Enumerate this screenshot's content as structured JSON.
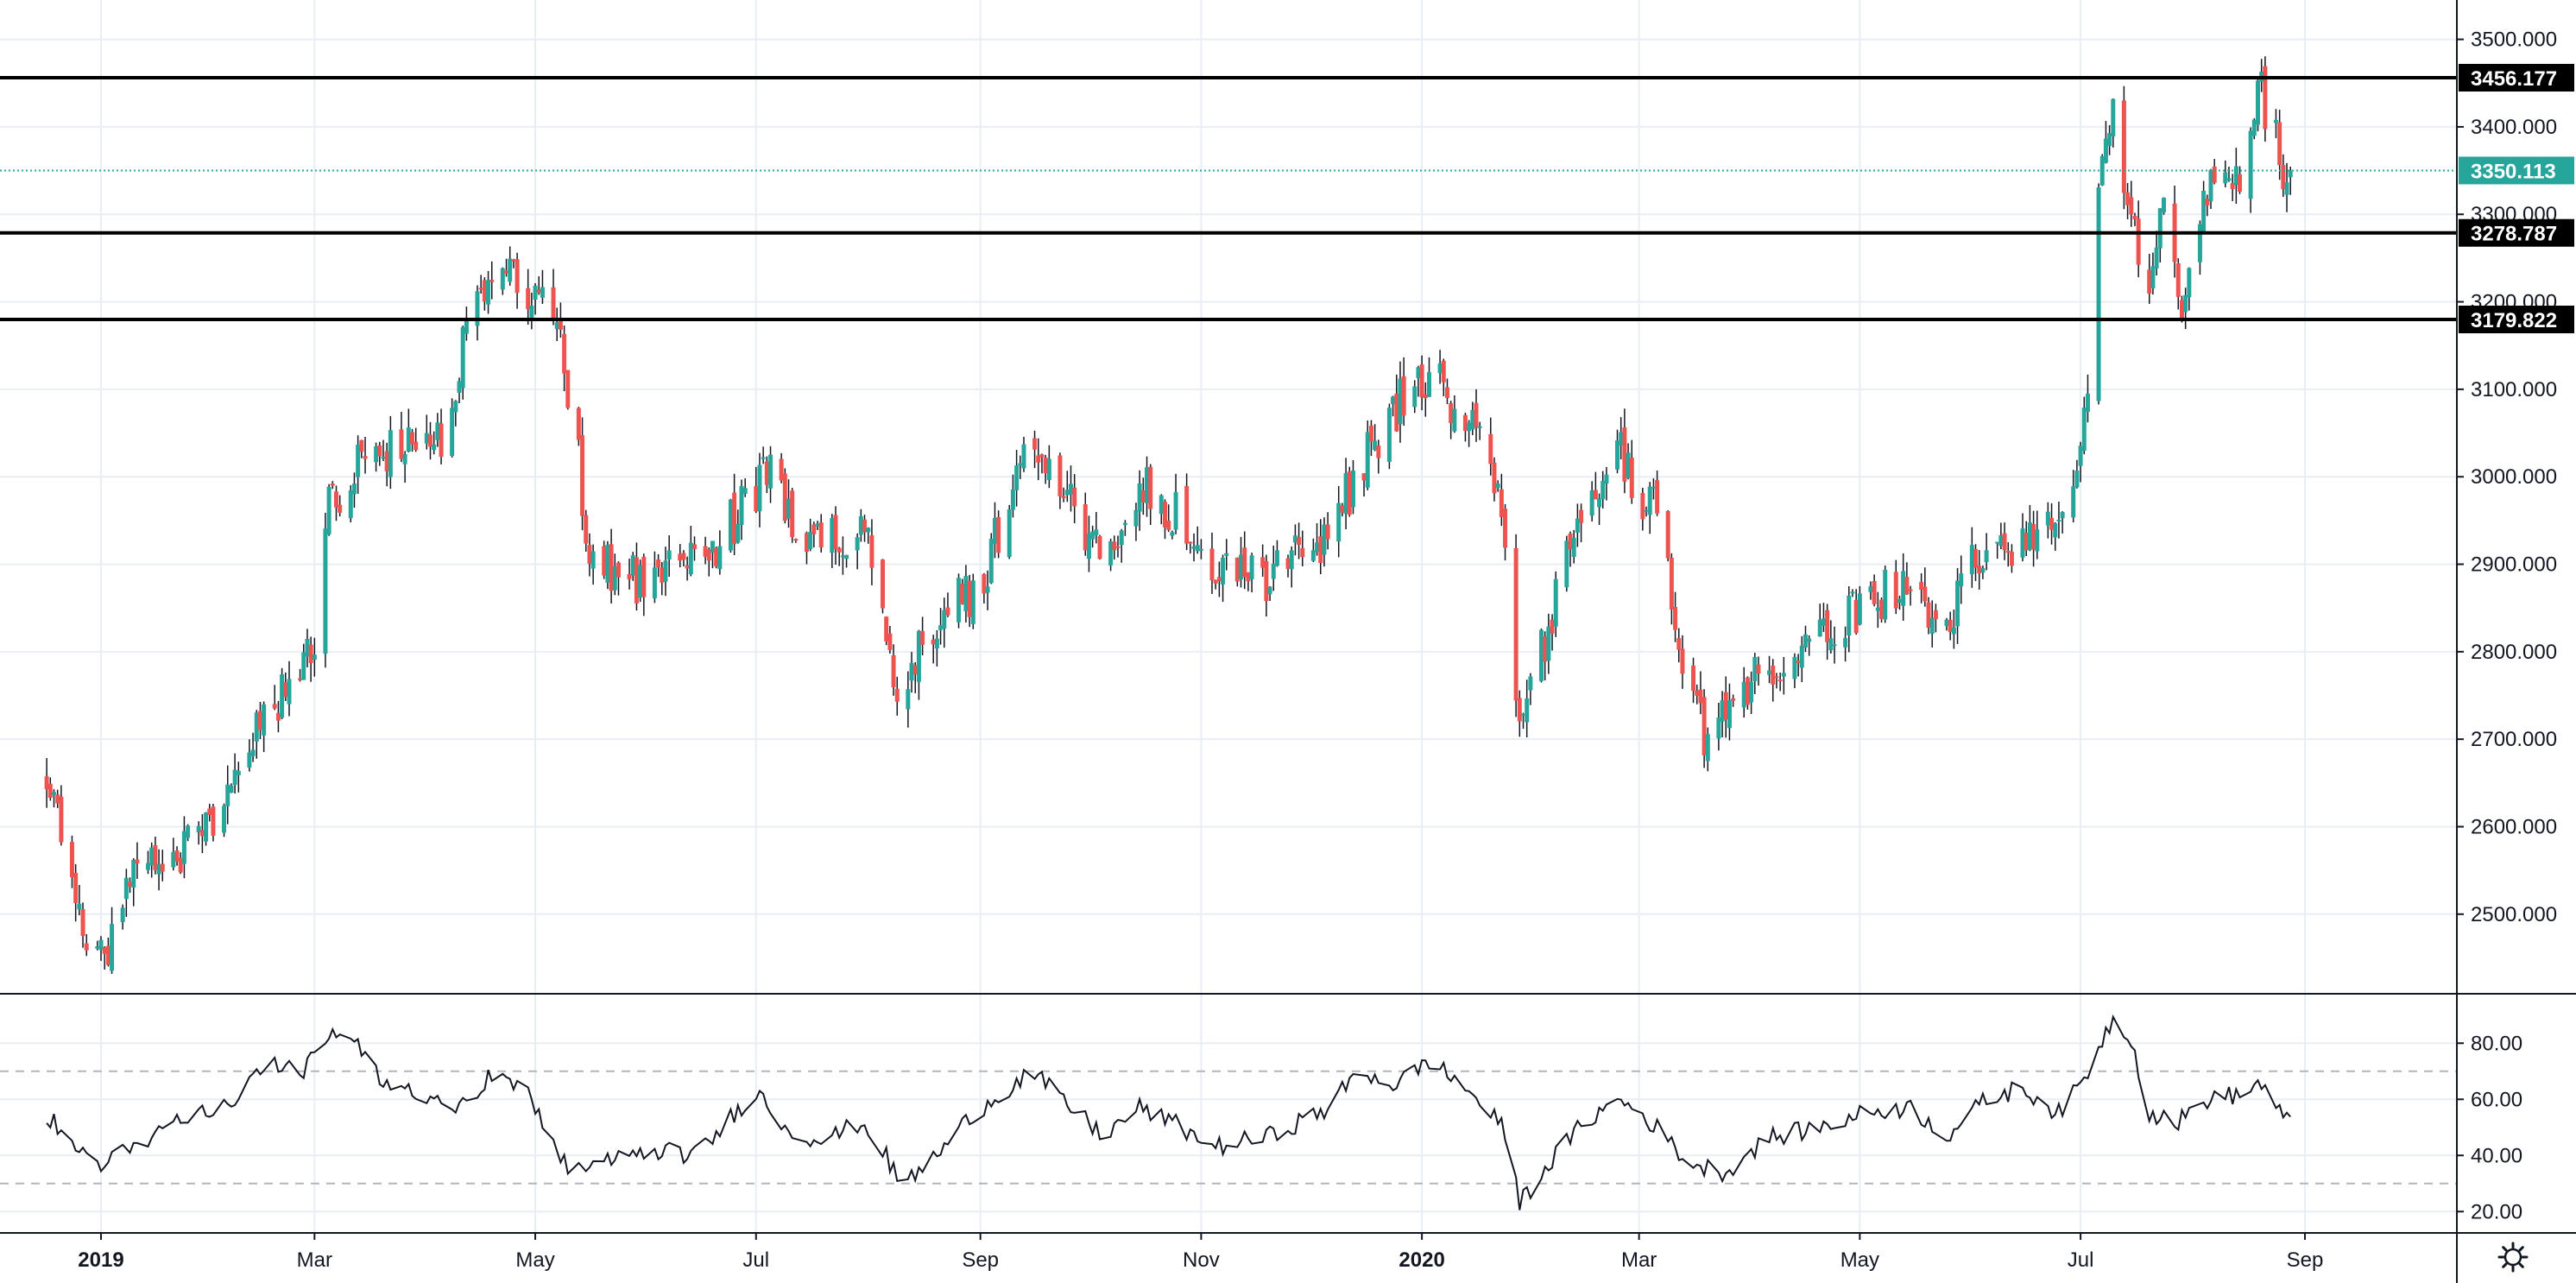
{
  "chart_data": [
    {
      "type": "candlestick",
      "title": "",
      "y_ticks": [
        "2500.000",
        "2600.000",
        "2700.000",
        "2800.000",
        "2900.000",
        "3000.000",
        "3100.000",
        "3200.000",
        "3300.000",
        "3400.000",
        "3500.000"
      ],
      "ylim": [
        2410,
        3545
      ],
      "x_labels": [
        {
          "label": "2019",
          "date": "2019-01-01",
          "year": true
        },
        {
          "label": "Mar",
          "date": "2019-03-01",
          "year": false
        },
        {
          "label": "May",
          "date": "2019-05-01",
          "year": false
        },
        {
          "label": "Jul",
          "date": "2019-07-01",
          "year": false
        },
        {
          "label": "Sep",
          "date": "2019-09-01",
          "year": false
        },
        {
          "label": "Nov",
          "date": "2019-11-01",
          "year": false
        },
        {
          "label": "2020",
          "date": "2020-01-01",
          "year": true
        },
        {
          "label": "Mar",
          "date": "2020-03-01",
          "year": false
        },
        {
          "label": "May",
          "date": "2020-05-01",
          "year": false
        },
        {
          "label": "Jul",
          "date": "2020-07-01",
          "year": false
        },
        {
          "label": "Sep",
          "date": "2020-09-01",
          "year": false
        }
      ],
      "horizontal_lines": [
        {
          "value": 3456.177,
          "label": "3456.177",
          "color": "#000000"
        },
        {
          "value": 3278.787,
          "label": "3278.787",
          "color": "#000000"
        },
        {
          "value": 3179.822,
          "label": "3179.822",
          "color": "#000000"
        }
      ],
      "last_price": {
        "value": 3350.113,
        "label": "3350.113",
        "color": "#26a69a"
      },
      "up_color": "#26a69a",
      "down_color": "#ef5350",
      "close_path": [
        [
          "2018-12-15",
          2650
        ],
        [
          "2018-12-20",
          2600
        ],
        [
          "2018-12-28",
          2470
        ],
        [
          "2019-01-02",
          2450
        ],
        [
          "2019-01-10",
          2560
        ],
        [
          "2019-01-20",
          2570
        ],
        [
          "2019-02-01",
          2600
        ],
        [
          "2019-02-15",
          2730
        ],
        [
          "2019-02-28",
          2790
        ],
        [
          "2019-03-05",
          2960
        ],
        [
          "2019-03-15",
          3020
        ],
        [
          "2019-03-25",
          3040
        ],
        [
          "2019-04-05",
          3040
        ],
        [
          "2019-04-12",
          3170
        ],
        [
          "2019-04-20",
          3250
        ],
        [
          "2019-04-26",
          3230
        ],
        [
          "2019-05-01",
          3210
        ],
        [
          "2019-05-08",
          3140
        ],
        [
          "2019-05-12",
          3060
        ],
        [
          "2019-05-15",
          2930
        ],
        [
          "2019-05-25",
          2880
        ],
        [
          "2019-06-10",
          2890
        ],
        [
          "2019-06-20",
          2920
        ],
        [
          "2019-07-01",
          2990
        ],
        [
          "2019-07-05",
          3030
        ],
        [
          "2019-07-10",
          2960
        ],
        [
          "2019-07-20",
          2920
        ],
        [
          "2019-08-01",
          2940
        ],
        [
          "2019-08-06",
          2800
        ],
        [
          "2019-08-10",
          2760
        ],
        [
          "2019-08-20",
          2830
        ],
        [
          "2019-09-01",
          2880
        ],
        [
          "2019-09-10",
          2990
        ],
        [
          "2019-09-15",
          3030
        ],
        [
          "2019-09-25",
          2970
        ],
        [
          "2019-10-05",
          2920
        ],
        [
          "2019-10-15",
          2990
        ],
        [
          "2019-10-25",
          2960
        ],
        [
          "2019-11-05",
          2900
        ],
        [
          "2019-11-20",
          2880
        ],
        [
          "2019-12-05",
          2930
        ],
        [
          "2019-12-15",
          3010
        ],
        [
          "2019-12-25",
          3080
        ],
        [
          "2020-01-03",
          3110
        ],
        [
          "2020-01-15",
          3070
        ],
        [
          "2020-01-23",
          2980
        ],
        [
          "2020-01-28",
          2720
        ],
        [
          "2020-02-02",
          2780
        ],
        [
          "2020-02-10",
          2900
        ],
        [
          "2020-02-20",
          3010
        ],
        [
          "2020-02-25",
          3050
        ],
        [
          "2020-03-01",
          2920
        ],
        [
          "2020-03-05",
          3010
        ],
        [
          "2020-03-10",
          2870
        ],
        [
          "2020-03-15",
          2760
        ],
        [
          "2020-03-20",
          2680
        ],
        [
          "2020-03-25",
          2730
        ],
        [
          "2020-04-05",
          2780
        ],
        [
          "2020-04-15",
          2800
        ],
        [
          "2020-04-25",
          2830
        ],
        [
          "2020-05-05",
          2860
        ],
        [
          "2020-05-15",
          2880
        ],
        [
          "2020-05-25",
          2820
        ],
        [
          "2020-06-01",
          2900
        ],
        [
          "2020-06-15",
          2920
        ],
        [
          "2020-06-25",
          2950
        ],
        [
          "2020-06-30",
          2990
        ],
        [
          "2020-07-03",
          3090
        ],
        [
          "2020-07-06",
          3340
        ],
        [
          "2020-07-10",
          3430
        ],
        [
          "2020-07-15",
          3300
        ],
        [
          "2020-07-20",
          3200
        ],
        [
          "2020-07-24",
          3330
        ],
        [
          "2020-07-28",
          3190
        ],
        [
          "2020-08-01",
          3270
        ],
        [
          "2020-08-07",
          3360
        ],
        [
          "2020-08-14",
          3330
        ],
        [
          "2020-08-19",
          3450
        ],
        [
          "2020-08-24",
          3380
        ],
        [
          "2020-08-28",
          3330
        ]
      ]
    },
    {
      "type": "line",
      "name": "",
      "y_ticks": [
        "20.00",
        "40.00",
        "60.00",
        "80.00"
      ],
      "ylim": [
        13,
        97
      ],
      "bands": [
        30,
        70
      ],
      "points": [
        [
          "2018-12-15",
          56
        ],
        [
          "2018-12-22",
          48
        ],
        [
          "2019-01-01",
          33
        ],
        [
          "2019-01-05",
          42
        ],
        [
          "2019-01-15",
          47
        ],
        [
          "2019-01-25",
          55
        ],
        [
          "2019-02-05",
          58
        ],
        [
          "2019-02-15",
          73
        ],
        [
          "2019-02-25",
          69
        ],
        [
          "2019-03-05",
          82
        ],
        [
          "2019-03-10",
          84
        ],
        [
          "2019-03-20",
          65
        ],
        [
          "2019-03-30",
          63
        ],
        [
          "2019-04-10",
          58
        ],
        [
          "2019-04-20",
          70
        ],
        [
          "2019-04-30",
          60
        ],
        [
          "2019-05-10",
          35
        ],
        [
          "2019-05-20",
          37
        ],
        [
          "2019-06-01",
          42
        ],
        [
          "2019-06-15",
          40
        ],
        [
          "2019-06-25",
          55
        ],
        [
          "2019-07-01",
          63
        ],
        [
          "2019-07-10",
          49
        ],
        [
          "2019-07-20",
          45
        ],
        [
          "2019-07-30",
          52
        ],
        [
          "2019-08-05",
          42
        ],
        [
          "2019-08-10",
          29
        ],
        [
          "2019-08-20",
          40
        ],
        [
          "2019-08-30",
          55
        ],
        [
          "2019-09-10",
          65
        ],
        [
          "2019-09-15",
          70
        ],
        [
          "2019-09-25",
          58
        ],
        [
          "2019-10-05",
          47
        ],
        [
          "2019-10-15",
          57
        ],
        [
          "2019-10-25",
          51
        ],
        [
          "2019-11-05",
          43
        ],
        [
          "2019-11-20",
          47
        ],
        [
          "2019-12-05",
          56
        ],
        [
          "2019-12-15",
          70
        ],
        [
          "2019-12-25",
          65
        ],
        [
          "2020-01-03",
          74
        ],
        [
          "2020-01-15",
          62
        ],
        [
          "2020-01-25",
          47
        ],
        [
          "2020-01-28",
          23
        ],
        [
          "2020-02-05",
          37
        ],
        [
          "2020-02-15",
          52
        ],
        [
          "2020-02-25",
          60
        ],
        [
          "2020-03-05",
          51
        ],
        [
          "2020-03-15",
          37
        ],
        [
          "2020-03-25",
          34
        ],
        [
          "2020-04-05",
          46
        ],
        [
          "2020-04-20",
          50
        ],
        [
          "2020-05-05",
          56
        ],
        [
          "2020-05-15",
          57
        ],
        [
          "2020-05-25",
          47
        ],
        [
          "2020-06-05",
          60
        ],
        [
          "2020-06-15",
          64
        ],
        [
          "2020-06-25",
          55
        ],
        [
          "2020-07-01",
          65
        ],
        [
          "2020-07-10",
          89
        ],
        [
          "2020-07-15",
          82
        ],
        [
          "2020-07-20",
          55
        ],
        [
          "2020-07-28",
          52
        ],
        [
          "2020-08-05",
          60
        ],
        [
          "2020-08-15",
          62
        ],
        [
          "2020-08-20",
          66
        ],
        [
          "2020-08-25",
          55
        ],
        [
          "2020-08-28",
          51
        ]
      ]
    }
  ]
}
